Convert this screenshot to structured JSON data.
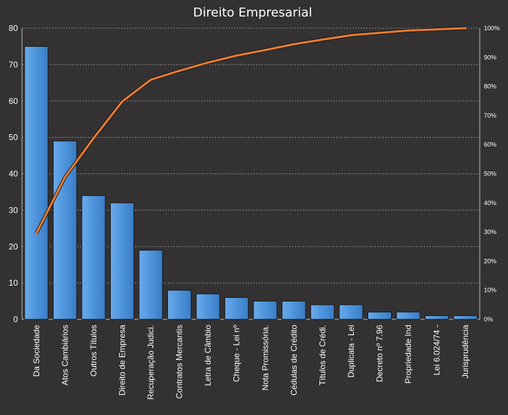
{
  "chart_data": {
    "type": "bar",
    "title": "Direito Empresarial",
    "categories": [
      "Da Sociedade",
      "Atos Cambiários",
      "Outros Títulos",
      "Direito de Empresa",
      "Recuperação Judici.",
      "Contratos Mercantis",
      "Letra de Câmbio",
      "Cheque - Lei nº",
      "Nota Promissória.",
      "Cédulas de Crédito",
      "Títulos de Crédi.",
      "Duplicata - Lei",
      "Decreto nº 7.96",
      "Propriedade Ind",
      "Lei 6.024/74  -",
      "Jurisprudência"
    ],
    "series": [
      {
        "type": "bar",
        "axis": "left",
        "values": [
          75,
          49,
          34,
          32,
          19,
          8,
          7,
          6,
          5,
          5,
          4,
          4,
          2,
          2,
          1,
          1
        ]
      },
      {
        "type": "line",
        "axis": "right",
        "values": [
          29.5,
          48.8,
          62.2,
          74.8,
          82.3,
          85.4,
          88.2,
          90.6,
          92.5,
          94.5,
          96.1,
          97.6,
          98.4,
          99.2,
          99.6,
          100
        ]
      }
    ],
    "yaxis_left": {
      "min": 0,
      "max": 80,
      "ticks": [
        0,
        10,
        20,
        30,
        40,
        50,
        60,
        70,
        80
      ]
    },
    "yaxis_right": {
      "min": 0,
      "max": 100,
      "ticks": [
        "0%",
        "10%",
        "20%",
        "30%",
        "40%",
        "50%",
        "60%",
        "70%",
        "80%",
        "90%",
        "100%"
      ]
    },
    "grid": true,
    "legend": "none",
    "colors": {
      "background": "#333132",
      "bar": "#4d94dc",
      "line": "#ed7d31",
      "grid": "#8a8a8a",
      "text": "#ffffff"
    }
  }
}
